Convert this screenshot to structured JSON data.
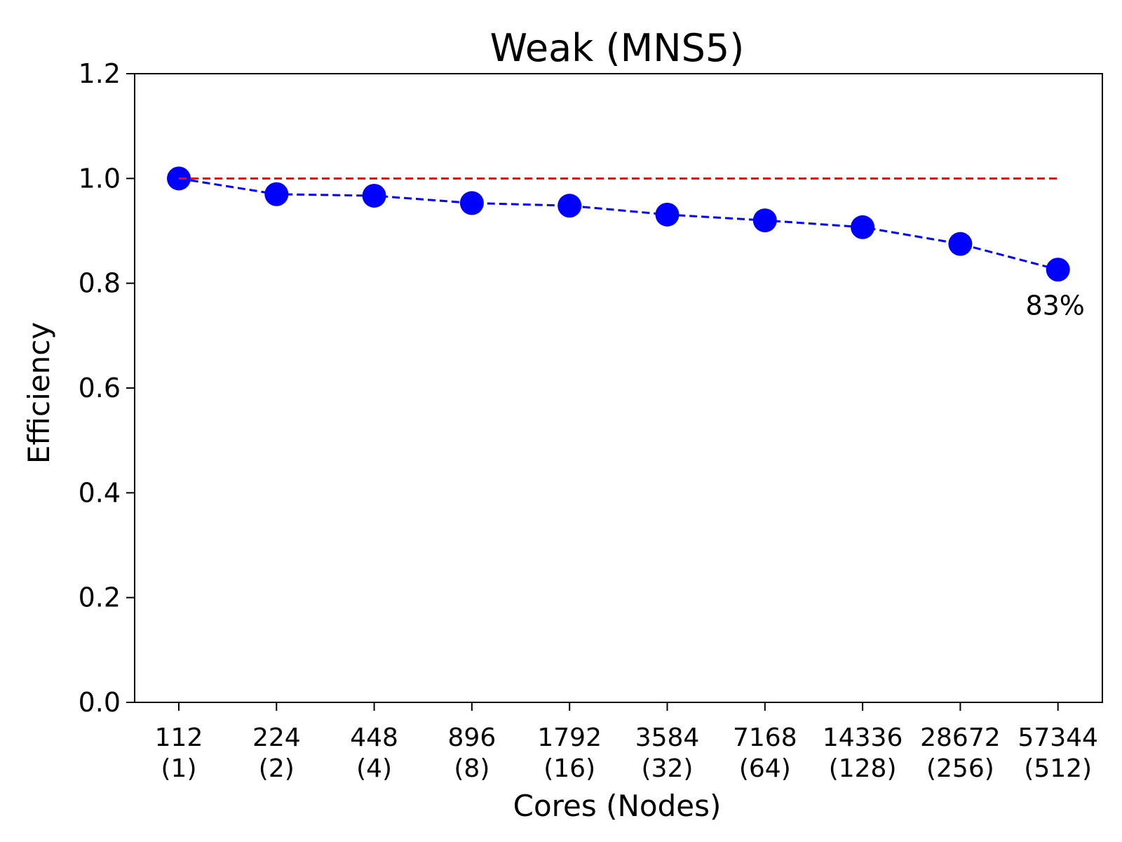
{
  "chart_data": {
    "type": "line",
    "title": "Weak (MNS5)",
    "xlabel": "Cores (Nodes)",
    "ylabel": "Efficiency",
    "categories": [
      [
        "112",
        "(1)"
      ],
      [
        "224",
        "(2)"
      ],
      [
        "448",
        "(4)"
      ],
      [
        "896",
        "(8)"
      ],
      [
        "1792",
        "(16)"
      ],
      [
        "3584",
        "(32)"
      ],
      [
        "7168",
        "(64)"
      ],
      [
        "14336",
        "(128)"
      ],
      [
        "28672",
        "(256)"
      ],
      [
        "57344",
        "(512)"
      ]
    ],
    "series": [
      {
        "values": [
          1.0,
          0.97,
          0.967,
          0.953,
          0.948,
          0.931,
          0.92,
          0.907,
          0.875,
          0.826
        ],
        "color": "#0000ff",
        "line_style": "dashed",
        "marker": "circle"
      },
      {
        "values": [
          1.0,
          1.0,
          1.0,
          1.0,
          1.0,
          1.0,
          1.0,
          1.0,
          1.0,
          1.0
        ],
        "color": "#ff0000",
        "line_style": "dashed",
        "marker": "none"
      }
    ],
    "yticks": [
      "0.0",
      "0.2",
      "0.4",
      "0.6",
      "0.8",
      "1.0",
      "1.2"
    ],
    "ylim": [
      0,
      1.2
    ],
    "grid": false,
    "annotations": [
      {
        "text": "83%",
        "category_index": 9
      }
    ]
  }
}
